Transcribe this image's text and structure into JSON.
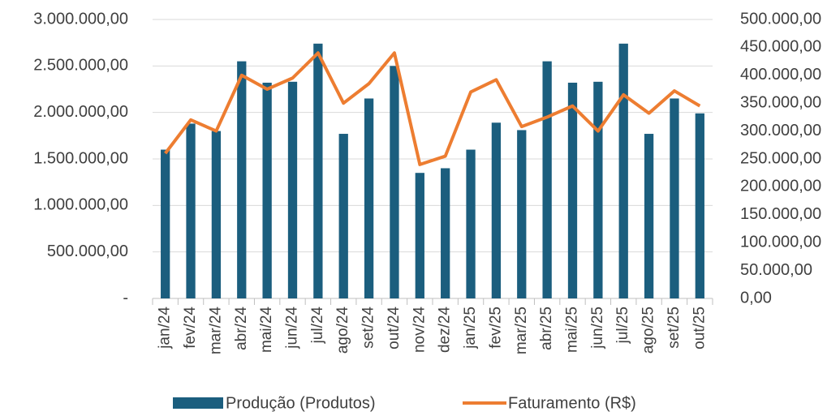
{
  "chart_data": {
    "type": "bar-line",
    "categories": [
      "jan/24",
      "fev/24",
      "mar/24",
      "abr/24",
      "mai/24",
      "jun/24",
      "jul/24",
      "ago/24",
      "set/24",
      "out/24",
      "nov/24",
      "dez/24",
      "jan/25",
      "fev/25",
      "mar/25",
      "abr/25",
      "mai/25",
      "jun/25",
      "jul/25",
      "ago/25",
      "set/25",
      "out/25"
    ],
    "series": [
      {
        "name": "Produção (Produtos)",
        "type": "bar",
        "color": "#1b5e7e",
        "axis": "y",
        "values": [
          1600000,
          1880000,
          1800000,
          2550000,
          2320000,
          2330000,
          2740000,
          1770000,
          2150000,
          2500000,
          1350000,
          1400000,
          1600000,
          1890000,
          1810000,
          2550000,
          2320000,
          2330000,
          2740000,
          1770000,
          2150000,
          1990000
        ]
      },
      {
        "name": "Faturamento (R$)",
        "type": "line",
        "color": "#ed7d31",
        "axis": "y2",
        "values": [
          260000,
          320000,
          300000,
          400000,
          375000,
          395000,
          440000,
          350000,
          385000,
          440000,
          240000,
          255000,
          370000,
          392000,
          308000,
          325000,
          345000,
          300000,
          365000,
          332000,
          372000,
          345000
        ]
      }
    ],
    "ylim": [
      0,
      3000000
    ],
    "yticks": [
      {
        "value": 0,
        "label": "-"
      },
      {
        "value": 500000,
        "label": "500.000,00"
      },
      {
        "value": 1000000,
        "label": "1.000.000,00"
      },
      {
        "value": 1500000,
        "label": "1.500.000,00"
      },
      {
        "value": 2000000,
        "label": "2.000.000,00"
      },
      {
        "value": 2500000,
        "label": "2.500.000,00"
      },
      {
        "value": 3000000,
        "label": "3.000.000,00"
      }
    ],
    "y2lim": [
      0,
      500000
    ],
    "y2ticks": [
      {
        "value": 0,
        "label": "0,00"
      },
      {
        "value": 50000,
        "label": "50.000,00"
      },
      {
        "value": 100000,
        "label": "100.000,00"
      },
      {
        "value": 150000,
        "label": "150.000,00"
      },
      {
        "value": 200000,
        "label": "200.000,00"
      },
      {
        "value": 250000,
        "label": "250.000,00"
      },
      {
        "value": 300000,
        "label": "300.000,00"
      },
      {
        "value": 350000,
        "label": "350.000,00"
      },
      {
        "value": 400000,
        "label": "400.000,00"
      },
      {
        "value": 450000,
        "label": "450.000,00"
      },
      {
        "value": 500000,
        "label": "500.000,00"
      }
    ],
    "grid": true,
    "legend": "bottom"
  }
}
